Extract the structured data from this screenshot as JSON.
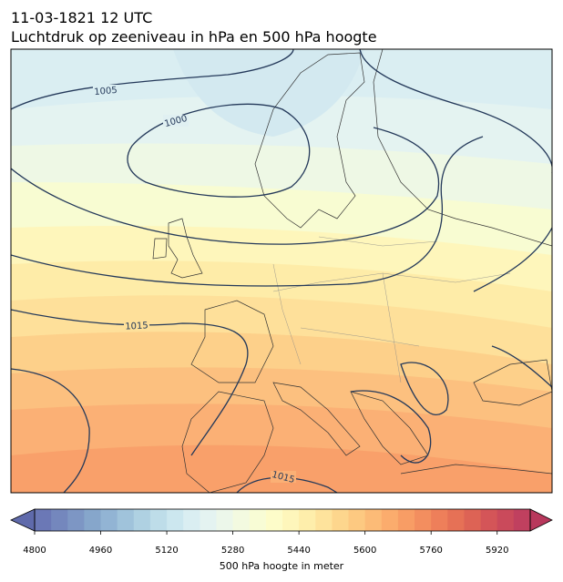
{
  "title": "11-03-1821 12 UTC",
  "subtitle": "Luchtdruk op zeeniveau in hPa en 500 hPa hoogte",
  "isobar_labels": [
    "1005",
    "1000",
    "1015",
    "1015"
  ],
  "colorbar": {
    "label": "500 hPa hoogte in meter",
    "lim": [
      4800,
      6000
    ],
    "ticks": [
      4800,
      4960,
      5120,
      5280,
      5440,
      5600,
      5760,
      5920
    ],
    "under_color": "#5f6aab",
    "over_color": "#b8385c",
    "colors": [
      "#6b78b6",
      "#7487bd",
      "#7d96c4",
      "#86a6cb",
      "#92b4d4",
      "#a0c3db",
      "#afd1e2",
      "#bedde9",
      "#cce7ef",
      "#daeef2",
      "#e4f3f1",
      "#ecf7ea",
      "#f3fae0",
      "#f8fcd5",
      "#fdfcc9",
      "#fef6bb",
      "#feeeab",
      "#fee39c",
      "#fdd68d",
      "#fdc981",
      "#fcbb77",
      "#fbac6d",
      "#f89d65",
      "#f38e5f",
      "#ee7f5a",
      "#e67156",
      "#dd6355",
      "#d45558",
      "#ca4a5b",
      "#c0405f"
    ]
  }
}
